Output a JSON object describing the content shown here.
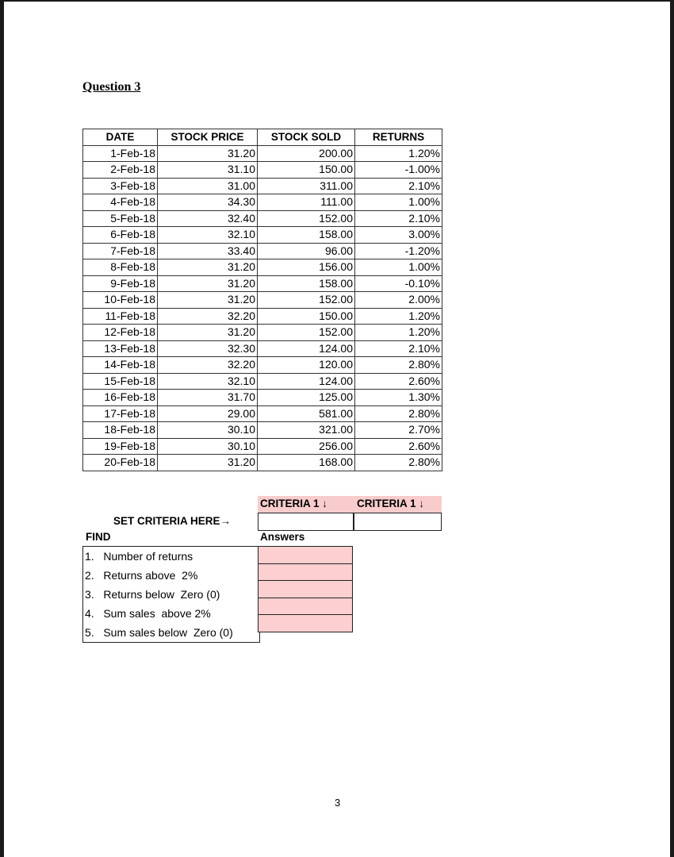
{
  "title": "Question 3",
  "table": {
    "headers": [
      "DATE",
      "STOCK PRICE",
      "STOCK SOLD",
      "RETURNS"
    ],
    "rows": [
      [
        "1-Feb-18",
        "31.20",
        "200.00",
        "1.20%"
      ],
      [
        "2-Feb-18",
        "31.10",
        "150.00",
        "-1.00%"
      ],
      [
        "3-Feb-18",
        "31.00",
        "311.00",
        "2.10%"
      ],
      [
        "4-Feb-18",
        "34.30",
        "111.00",
        "1.00%"
      ],
      [
        "5-Feb-18",
        "32.40",
        "152.00",
        "2.10%"
      ],
      [
        "6-Feb-18",
        "32.10",
        "158.00",
        "3.00%"
      ],
      [
        "7-Feb-18",
        "33.40",
        "96.00",
        "-1.20%"
      ],
      [
        "8-Feb-18",
        "31.20",
        "156.00",
        "1.00%"
      ],
      [
        "9-Feb-18",
        "31.20",
        "158.00",
        "-0.10%"
      ],
      [
        "10-Feb-18",
        "31.20",
        "152.00",
        "2.00%"
      ],
      [
        "11-Feb-18",
        "32.20",
        "150.00",
        "1.20%"
      ],
      [
        "12-Feb-18",
        "31.20",
        "152.00",
        "1.20%"
      ],
      [
        "13-Feb-18",
        "32.30",
        "124.00",
        "2.10%"
      ],
      [
        "14-Feb-18",
        "32.20",
        "120.00",
        "2.80%"
      ],
      [
        "15-Feb-18",
        "32.10",
        "124.00",
        "2.60%"
      ],
      [
        "16-Feb-18",
        "31.70",
        "125.00",
        "1.30%"
      ],
      [
        "17-Feb-18",
        "29.00",
        "581.00",
        "2.80%"
      ],
      [
        "18-Feb-18",
        "30.10",
        "321.00",
        "2.70%"
      ],
      [
        "19-Feb-18",
        "30.10",
        "256.00",
        "2.60%"
      ],
      [
        "20-Feb-18",
        "31.20",
        "168.00",
        "2.80%"
      ]
    ]
  },
  "criteria": {
    "header_1": "CRITERIA 1 ↓",
    "header_2": "CRITERIA 1 ↓",
    "set_label": "SET CRITERIA HERE→",
    "value_1": "",
    "value_2": ""
  },
  "find": {
    "label": "FIND",
    "answers_label": "Answers",
    "items": [
      "1.   Number of returns",
      "2.   Returns above  2%",
      "3.   Returns below  Zero (0)",
      "4.   Sum sales  above 2%",
      "5.   Sum sales below  Zero (0)"
    ]
  },
  "colors": {
    "highlight": "#f9cccc"
  },
  "page_number": "3"
}
